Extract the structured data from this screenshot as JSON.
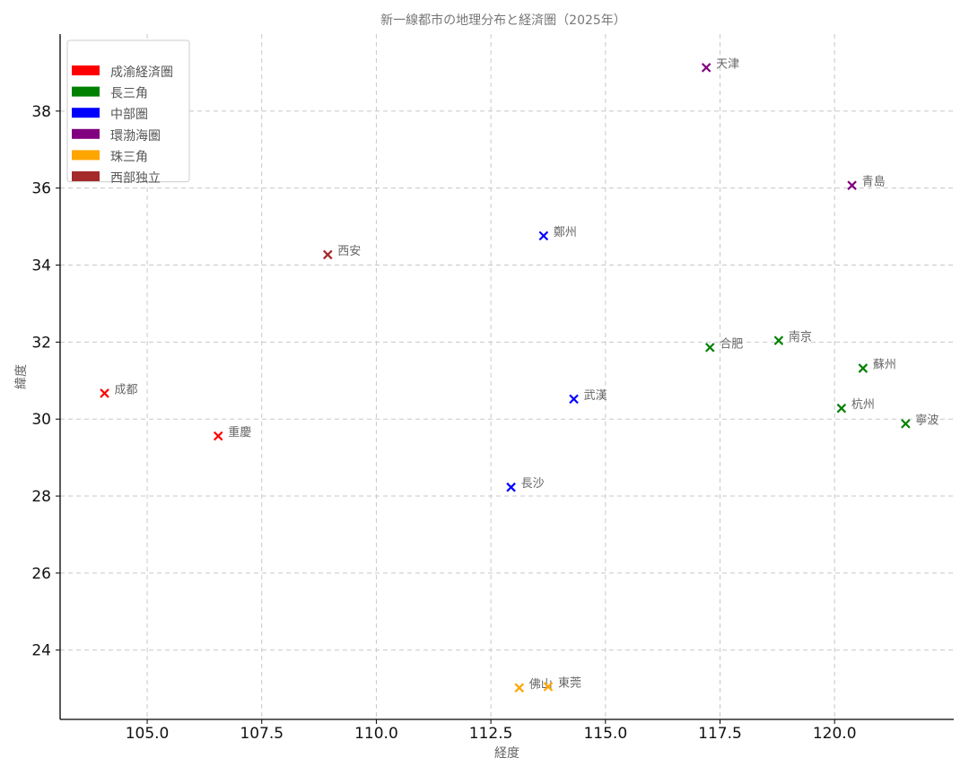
{
  "chart_data": {
    "type": "scatter",
    "title": "新一線都市の地理分布と経済圏（2025年）",
    "xlabel": "経度",
    "ylabel": "緯度",
    "xlim": [
      103.1,
      122.6
    ],
    "ylim": [
      22.2,
      40.0
    ],
    "xticks": [
      105.0,
      107.5,
      110.0,
      112.5,
      115.0,
      117.5,
      120.0
    ],
    "xtick_labels": [
      "105.0",
      "107.5",
      "110.0",
      "112.5",
      "115.0",
      "117.5",
      "120.0"
    ],
    "yticks": [
      24,
      26,
      28,
      30,
      32,
      34,
      36,
      38
    ],
    "ytick_labels": [
      "24",
      "26",
      "28",
      "30",
      "32",
      "34",
      "36",
      "38"
    ],
    "grid": true,
    "legend_position": "top-left",
    "marker": "x",
    "series": [
      {
        "name": "成渝経済圏",
        "color": "#ff0000",
        "points": [
          {
            "label": "成都",
            "x": 104.07,
            "y": 30.67
          },
          {
            "label": "重慶",
            "x": 106.55,
            "y": 29.56
          }
        ]
      },
      {
        "name": "長三角",
        "color": "#008000",
        "points": [
          {
            "label": "合肥",
            "x": 117.28,
            "y": 31.86
          },
          {
            "label": "南京",
            "x": 118.78,
            "y": 32.04
          },
          {
            "label": "蘇州",
            "x": 120.62,
            "y": 31.32
          },
          {
            "label": "杭州",
            "x": 120.15,
            "y": 30.28
          },
          {
            "label": "寧波",
            "x": 121.55,
            "y": 29.88
          }
        ]
      },
      {
        "name": "中部圏",
        "color": "#0000ff",
        "points": [
          {
            "label": "鄭州",
            "x": 113.65,
            "y": 34.76
          },
          {
            "label": "武漢",
            "x": 114.31,
            "y": 30.52
          },
          {
            "label": "長沙",
            "x": 112.94,
            "y": 28.23
          }
        ]
      },
      {
        "name": "環渤海圏",
        "color": "#800080",
        "points": [
          {
            "label": "天津",
            "x": 117.2,
            "y": 39.13
          },
          {
            "label": "青島",
            "x": 120.38,
            "y": 36.07
          }
        ]
      },
      {
        "name": "珠三角",
        "color": "#ffa500",
        "points": [
          {
            "label": "佛山",
            "x": 113.12,
            "y": 23.02
          },
          {
            "label": "東莞",
            "x": 113.75,
            "y": 23.05
          }
        ]
      },
      {
        "name": "西部独立",
        "color": "#a52a2a",
        "points": [
          {
            "label": "西安",
            "x": 108.94,
            "y": 34.27
          }
        ]
      }
    ]
  }
}
